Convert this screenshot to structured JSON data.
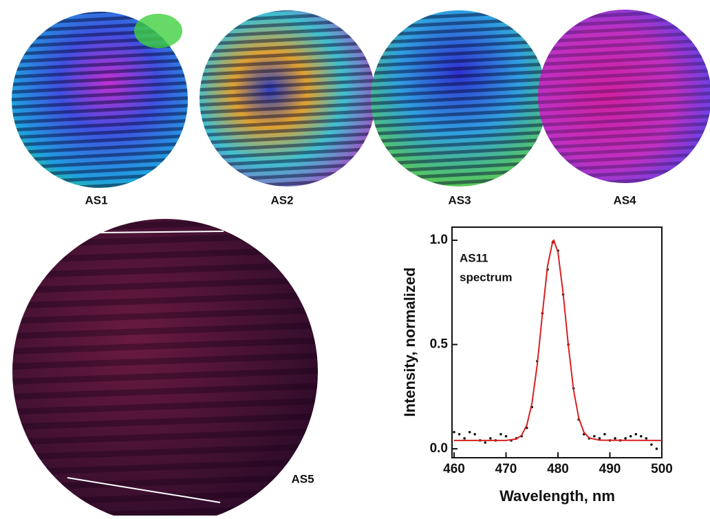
{
  "panels": {
    "labels": [
      "AS1",
      "AS2",
      "AS3",
      "AS4",
      "AS5"
    ]
  },
  "chart_data": {
    "type": "scatter",
    "annotation": [
      "AS11",
      "spectrum"
    ],
    "xlabel": "Wavelength, nm",
    "ylabel": "Intensity, normalized",
    "xlim": [
      459.6,
      500
    ],
    "ylim": [
      -0.043,
      1.063
    ],
    "xticks": [
      460,
      470,
      480,
      490,
      500
    ],
    "yticks": [
      {
        "value": 0,
        "label": "0.0"
      },
      {
        "value": 0.5,
        "label": "0.5"
      },
      {
        "value": 1,
        "label": "1.0"
      }
    ],
    "series": [
      {
        "mode": "markers",
        "color": "#111111",
        "x": [
          460,
          461,
          462,
          463,
          464,
          465,
          466,
          467,
          468,
          469,
          470,
          471,
          472,
          473,
          474,
          475,
          476,
          477,
          478,
          479,
          480,
          481,
          482,
          483,
          484,
          485,
          486,
          487,
          488,
          489,
          490,
          491,
          492,
          493,
          494,
          495,
          496,
          497,
          498,
          499
        ],
        "values": [
          0.08,
          0.07,
          0.05,
          0.08,
          0.07,
          0.04,
          0.03,
          0.05,
          0.04,
          0.07,
          0.06,
          0.04,
          0.05,
          0.06,
          0.1,
          0.2,
          0.42,
          0.65,
          0.86,
          0.99,
          0.95,
          0.74,
          0.5,
          0.29,
          0.14,
          0.07,
          0.05,
          0.06,
          0.05,
          0.07,
          0.04,
          0.05,
          0.04,
          0.05,
          0.06,
          0.07,
          0.06,
          0.05,
          0.02,
          0.0
        ]
      },
      {
        "mode": "line",
        "color": "#d62020",
        "x": [
          460,
          470,
          472,
          473,
          474,
          475,
          476,
          477,
          478,
          479,
          479.2,
          480,
          481,
          482,
          483,
          484,
          485,
          486,
          488,
          500
        ],
        "values": [
          0.04,
          0.04,
          0.047,
          0.065,
          0.113,
          0.219,
          0.402,
          0.646,
          0.877,
          0.996,
          1.0,
          0.943,
          0.745,
          0.495,
          0.283,
          0.148,
          0.079,
          0.052,
          0.041,
          0.04
        ]
      }
    ]
  }
}
